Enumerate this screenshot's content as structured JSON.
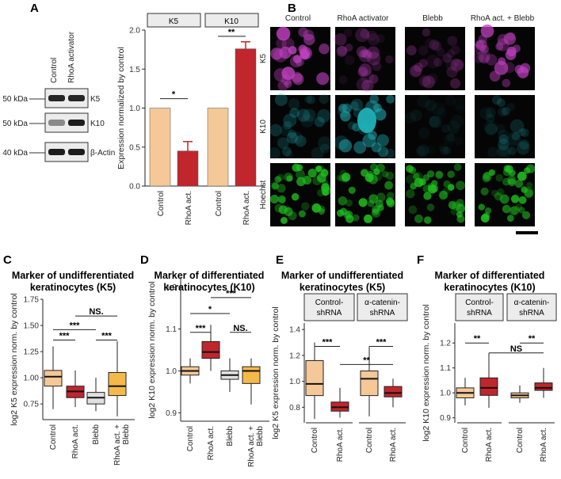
{
  "panel_labels": [
    "A",
    "B",
    "C",
    "D",
    "E",
    "F"
  ],
  "blot": {
    "lanes": [
      "Control",
      "RhoA activator"
    ],
    "rows": [
      {
        "label": "K5",
        "marker": "50 kDa"
      },
      {
        "label": "K10",
        "marker": "50 kDa"
      },
      {
        "label": "β-Actin",
        "marker": "40 kDa"
      }
    ]
  },
  "micro": {
    "columns": [
      "Control",
      "RhoA activator",
      "Blebb",
      "RhoA act. + Blebb"
    ],
    "rows": [
      {
        "label": "K5",
        "color": "#c040c0"
      },
      {
        "label": "K10",
        "color": "#20b0b8"
      },
      {
        "label": "Hoechst",
        "color": "#20c020"
      }
    ],
    "brightness": [
      [
        0.85,
        0.35,
        0.3,
        0.75
      ],
      [
        0.3,
        0.6,
        0.1,
        0.2
      ],
      [
        0.9,
        0.9,
        0.85,
        0.9
      ]
    ]
  },
  "colors": {
    "beige": "#f5c898",
    "red": "#c0262c",
    "grey": "#e0e0e0",
    "orange": "#f5b94a"
  },
  "chart_data": [
    {
      "id": "A",
      "type": "bar",
      "ylabel": "Expression normalized by control",
      "ylim": [
        0,
        2.0
      ],
      "yticks": [
        "0.0",
        "0.5",
        "1.0",
        "1.5",
        "2.0"
      ],
      "facets": [
        "K5",
        "K10"
      ],
      "categories": [
        "Control",
        "RhoA act."
      ],
      "series": [
        {
          "facet": "K5",
          "values": [
            1.0,
            0.45
          ],
          "errors": [
            0,
            0.12
          ]
        },
        {
          "facet": "K10",
          "values": [
            1.0,
            1.76
          ],
          "errors": [
            0,
            0.09
          ]
        }
      ],
      "significance": [
        "*",
        "**"
      ]
    },
    {
      "id": "C",
      "type": "box",
      "title": [
        "Marker of undifferentiated",
        "keratinocytes (K5)"
      ],
      "ylabel": "log2 K5 expression norm. by control",
      "ylim": [
        0.6,
        1.75
      ],
      "yticks": [
        "0.75",
        "1.00",
        "1.25",
        "1.50",
        "1.75"
      ],
      "categories": [
        "Control",
        "RhoA act.",
        "Blebb",
        "RhoA act. + Blebb"
      ],
      "boxes": [
        {
          "whisker_low": 0.7,
          "q1": 0.92,
          "median": 1.01,
          "q3": 1.07,
          "whisker_high": 1.3,
          "color": "#f5c898"
        },
        {
          "whisker_low": 0.72,
          "q1": 0.81,
          "median": 0.87,
          "q3": 0.92,
          "whisker_high": 1.07,
          "color": "#c0262c"
        },
        {
          "whisker_low": 0.68,
          "q1": 0.75,
          "median": 0.81,
          "q3": 0.86,
          "whisker_high": 1.0,
          "color": "#e0e0e0"
        },
        {
          "whisker_low": 0.63,
          "q1": 0.83,
          "median": 0.92,
          "q3": 1.05,
          "whisker_high": 1.35,
          "color": "#f5b94a"
        }
      ],
      "significance": [
        "***",
        "NS.",
        "***",
        "***"
      ]
    },
    {
      "id": "D",
      "type": "box",
      "title": [
        "Marker of differentiated",
        "keratinocytes (K10)"
      ],
      "ylabel": "log2 K10 expression norm. by control",
      "ylim": [
        0.88,
        1.22
      ],
      "yticks": [
        "0.9",
        "1.0",
        "1.1",
        "1.2"
      ],
      "categories": [
        "Control",
        "RhoA act.",
        "Blebb",
        "RhoA act. + Blebb"
      ],
      "boxes": [
        {
          "whisker_low": 0.97,
          "q1": 0.99,
          "median": 1.0,
          "q3": 1.01,
          "whisker_high": 1.03,
          "color": "#f5c898"
        },
        {
          "whisker_low": 1.0,
          "q1": 1.03,
          "median": 1.045,
          "q3": 1.07,
          "whisker_high": 1.11,
          "color": "#c0262c"
        },
        {
          "whisker_low": 0.95,
          "q1": 0.98,
          "median": 0.99,
          "q3": 1.0,
          "whisker_high": 1.03,
          "color": "#e0e0e0"
        },
        {
          "whisker_low": 0.92,
          "q1": 0.97,
          "median": 1.0,
          "q3": 1.01,
          "whisker_high": 1.03,
          "color": "#f5b94a"
        }
      ],
      "significance": [
        "***",
        "***",
        "*",
        "NS."
      ]
    },
    {
      "id": "E",
      "type": "box",
      "title": [
        "Marker of undifferentiated",
        "keratinocytes (K5)"
      ],
      "ylabel": "log2 K5 expression norm. by control",
      "ylim": [
        0.68,
        1.45
      ],
      "yticks": [
        "0.8",
        "1.0",
        "1.2",
        "1.4"
      ],
      "facets": [
        "Control-\nshRNA",
        "α-catenin-\nshRNA"
      ],
      "categories": [
        "Control",
        "RhoA act.",
        "Control",
        "RhoA act."
      ],
      "boxes": [
        {
          "whisker_low": 0.71,
          "q1": 0.89,
          "median": 0.98,
          "q3": 1.16,
          "whisker_high": 1.3,
          "color": "#f5c898"
        },
        {
          "whisker_low": 0.72,
          "q1": 0.77,
          "median": 0.8,
          "q3": 0.84,
          "whisker_high": 0.95,
          "color": "#c0262c"
        },
        {
          "whisker_low": 0.73,
          "q1": 0.89,
          "median": 1.02,
          "q3": 1.08,
          "whisker_high": 1.27,
          "color": "#f5c898"
        },
        {
          "whisker_low": 0.8,
          "q1": 0.88,
          "median": 0.91,
          "q3": 0.96,
          "whisker_high": 1.02,
          "color": "#c0262c"
        }
      ],
      "significance": [
        "***",
        "***",
        "**"
      ]
    },
    {
      "id": "F",
      "type": "box",
      "title": [
        "Marker of differentiated",
        "keratinocytes (K10)"
      ],
      "ylabel": "log2 K10 expression norm. by control",
      "ylim": [
        0.88,
        1.28
      ],
      "yticks": [
        "0.9",
        "1.0",
        "1.1",
        "1.2"
      ],
      "facets": [
        "Control-\nshRNA",
        "α-catenin-\nshRNA"
      ],
      "categories": [
        "Control",
        "RhoA act.",
        "Control",
        "RhoA act."
      ],
      "boxes": [
        {
          "whisker_low": 0.95,
          "q1": 0.98,
          "median": 1.0,
          "q3": 1.02,
          "whisker_high": 1.06,
          "color": "#f5c898"
        },
        {
          "whisker_low": 0.94,
          "q1": 0.99,
          "median": 1.02,
          "q3": 1.06,
          "whisker_high": 1.16,
          "color": "#c0262c"
        },
        {
          "whisker_low": 0.96,
          "q1": 0.98,
          "median": 0.99,
          "q3": 1.0,
          "whisker_high": 1.03,
          "color": "#f5c898"
        },
        {
          "whisker_low": 0.98,
          "q1": 1.01,
          "median": 1.02,
          "q3": 1.04,
          "whisker_high": 1.1,
          "color": "#c0262c"
        }
      ],
      "significance": [
        "**",
        "**",
        "NS"
      ]
    }
  ]
}
